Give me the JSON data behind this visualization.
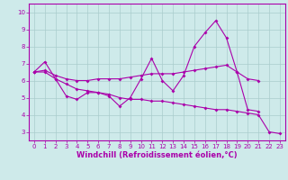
{
  "xlabel": "Windchill (Refroidissement éolien,°C)",
  "background_color": "#ceeaea",
  "grid_color": "#aacccc",
  "line_color": "#aa00aa",
  "xlim": [
    -0.5,
    23.5
  ],
  "ylim": [
    2.5,
    10.5
  ],
  "xticks": [
    0,
    1,
    2,
    3,
    4,
    5,
    6,
    7,
    8,
    9,
    10,
    11,
    12,
    13,
    14,
    15,
    16,
    17,
    18,
    19,
    20,
    21,
    22,
    23
  ],
  "yticks": [
    3,
    4,
    5,
    6,
    7,
    8,
    9,
    10
  ],
  "series1_x": [
    0,
    1,
    2,
    3,
    4,
    5,
    6,
    7,
    8,
    9,
    10,
    11,
    12,
    13,
    14,
    15,
    16,
    17,
    18,
    19,
    20,
    21
  ],
  "series1_y": [
    6.5,
    7.1,
    6.1,
    5.1,
    4.9,
    5.3,
    5.3,
    5.1,
    4.5,
    5.0,
    6.1,
    7.3,
    6.0,
    5.4,
    6.3,
    8.0,
    8.8,
    9.5,
    8.5,
    6.5,
    4.3,
    4.2
  ],
  "series2_x": [
    0,
    1,
    2,
    3,
    4,
    5,
    6,
    7,
    8,
    9,
    10,
    11,
    12,
    13,
    14,
    15,
    16,
    17,
    18,
    19,
    20,
    21
  ],
  "series2_y": [
    6.5,
    6.6,
    6.3,
    6.1,
    6.0,
    6.0,
    6.1,
    6.1,
    6.1,
    6.2,
    6.3,
    6.4,
    6.4,
    6.4,
    6.5,
    6.6,
    6.7,
    6.8,
    6.9,
    6.5,
    6.1,
    6.0
  ],
  "series3_x": [
    0,
    1,
    2,
    3,
    4,
    5,
    6,
    7,
    8,
    9,
    10,
    11,
    12,
    13,
    14,
    15,
    16,
    17,
    18,
    19,
    20,
    21,
    22,
    23
  ],
  "series3_y": [
    6.5,
    6.5,
    6.1,
    5.8,
    5.5,
    5.4,
    5.3,
    5.2,
    5.0,
    4.9,
    4.9,
    4.8,
    4.8,
    4.7,
    4.6,
    4.5,
    4.4,
    4.3,
    4.3,
    4.2,
    4.1,
    4.0,
    3.0,
    2.9
  ],
  "tick_fontsize": 5,
  "xlabel_fontsize": 6,
  "marker_size": 2.0,
  "line_width": 0.8
}
